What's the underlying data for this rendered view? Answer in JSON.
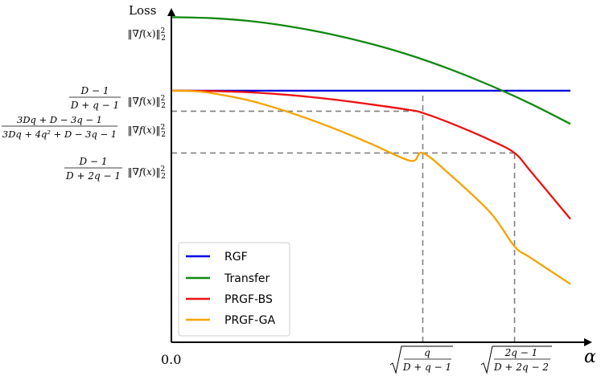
{
  "chart_data": {
    "type": "line",
    "ylabel": "Loss",
    "xlabel": "α",
    "xlim": [
      0,
      1
    ],
    "ylim": [
      0,
      1
    ],
    "grid": false,
    "legend_position": "lower-left",
    "x_ticks": [
      {
        "value": 0.0,
        "label": "0.0"
      },
      {
        "value": 0.63,
        "label": "√(q/(D+q−1))",
        "num": "q",
        "den": "D + q − 1"
      },
      {
        "value": 0.86,
        "label": "√((2q−1)/(D+2q−2))",
        "num": "2q − 1",
        "den": "D + 2q − 2"
      }
    ],
    "y_ticks": [
      {
        "value": 0.95,
        "label": "‖∇f(x)‖²₂"
      },
      {
        "value": 0.735,
        "label": "(D−1)/(D+q−1) ‖∇f(x)‖²₂",
        "num": "D − 1",
        "den": "D + q − 1"
      },
      {
        "value": 0.675,
        "label": "(3Dq+D−3q−1)/(3Dq+4q²+D−3q−1) ‖∇f(x)‖²₂",
        "num": "3Dq + D − 3q − 1",
        "den": "3Dq + 4q² + D − 3q − 1"
      },
      {
        "value": 0.553,
        "label": "(D−1)/(D+2q−1) ‖∇f(x)‖²₂",
        "num": "D − 1",
        "den": "D + 2q − 1"
      }
    ],
    "series": [
      {
        "name": "RGF",
        "color": "#0000dd",
        "x": [
          0.0,
          0.25,
          0.5,
          0.75,
          1.0
        ],
        "y": [
          0.735,
          0.735,
          0.735,
          0.735,
          0.735
        ]
      },
      {
        "name": "Transfer",
        "color": "#118811",
        "x": [
          0.0,
          0.1,
          0.2,
          0.3,
          0.4,
          0.5,
          0.6,
          0.7,
          0.8,
          0.9,
          1.0
        ],
        "y": [
          0.95,
          0.947,
          0.938,
          0.922,
          0.9,
          0.872,
          0.838,
          0.797,
          0.75,
          0.697,
          0.638
        ]
      },
      {
        "name": "PRGF-BS",
        "color": "#ee1111",
        "x": [
          0.0,
          0.1,
          0.2,
          0.3,
          0.4,
          0.5,
          0.6,
          0.63,
          0.7,
          0.8,
          0.86,
          0.9,
          1.0
        ],
        "y": [
          0.735,
          0.734,
          0.73,
          0.722,
          0.71,
          0.695,
          0.678,
          0.67,
          0.64,
          0.59,
          0.553,
          0.5,
          0.36
        ]
      },
      {
        "name": "PRGF-GA",
        "color": "#f5a300",
        "x": [
          0.0,
          0.05,
          0.1,
          0.2,
          0.3,
          0.4,
          0.5,
          0.6,
          0.63,
          0.7,
          0.8,
          0.86,
          0.9,
          1.0
        ],
        "y": [
          0.735,
          0.734,
          0.728,
          0.705,
          0.67,
          0.628,
          0.58,
          0.53,
          0.553,
          0.488,
          0.378,
          0.28,
          0.247,
          0.17
        ]
      }
    ],
    "reference_lines": [
      {
        "from": [
          0,
          0.675
        ],
        "to": [
          0.63,
          0.675
        ]
      },
      {
        "from": [
          0,
          0.553
        ],
        "to": [
          0.86,
          0.553
        ]
      },
      {
        "from": [
          0.63,
          0
        ],
        "to": [
          0.63,
          0.735
        ]
      },
      {
        "from": [
          0.86,
          0
        ],
        "to": [
          0.86,
          0.553
        ]
      }
    ]
  }
}
